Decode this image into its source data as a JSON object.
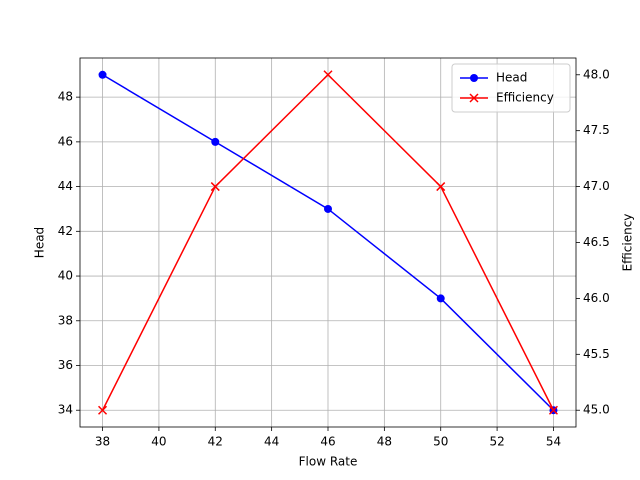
{
  "chart_data": {
    "type": "line",
    "x": [
      38,
      42,
      46,
      50,
      54
    ],
    "xlabel": "Flow Rate",
    "ylabel": "Head",
    "y2label": "Efficiency",
    "xlim": [
      37.2,
      54.8
    ],
    "xticks": [
      38,
      40,
      42,
      44,
      46,
      48,
      50,
      52,
      54
    ],
    "ylim": [
      33.25,
      49.75
    ],
    "yticks": [
      34,
      36,
      38,
      40,
      42,
      44,
      46,
      48
    ],
    "y2lim": [
      44.85,
      48.15
    ],
    "y2ticks": [
      {
        "value": 45,
        "label": "45.0"
      },
      {
        "value": 45.5,
        "label": "45.5"
      },
      {
        "value": 46,
        "label": "46.0"
      },
      {
        "value": 46.5,
        "label": "46.5"
      },
      {
        "value": 47,
        "label": "47.0"
      },
      {
        "value": 47.5,
        "label": "47.5"
      },
      {
        "value": 48,
        "label": "48.0"
      }
    ],
    "grid": true,
    "legend": "upper right",
    "series": [
      {
        "name": "Head",
        "color": "#0000ff",
        "marker": "o",
        "values": [
          49,
          46,
          43,
          39,
          34
        ]
      },
      {
        "name": "Efficiency",
        "color": "#ff0000",
        "marker": "x",
        "axis": "y2",
        "values": [
          45,
          47,
          48,
          47,
          45
        ]
      }
    ]
  }
}
